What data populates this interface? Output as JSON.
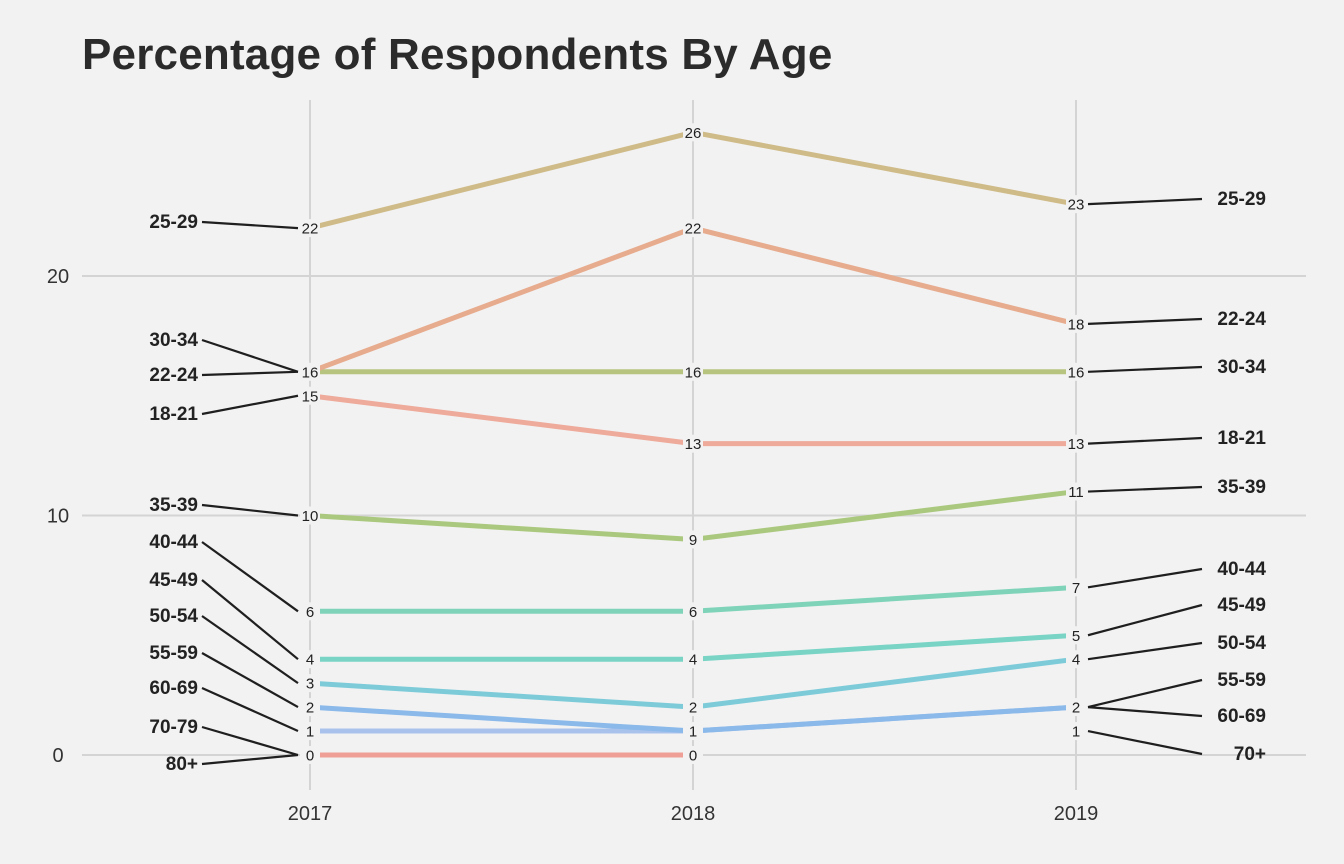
{
  "chart_data": {
    "type": "line",
    "title": "Percentage of Respondents By Age",
    "xlabel": "",
    "ylabel": "",
    "x": [
      "2017",
      "2018",
      "2019"
    ],
    "ylim": [
      -1.5,
      27.5
    ],
    "yticks": [
      0,
      10,
      20
    ],
    "grid": true,
    "legend": "none",
    "series": [
      {
        "name": "25-29",
        "values": [
          22,
          26,
          23
        ],
        "color": "#cfbb88"
      },
      {
        "name": "22-24",
        "values": [
          16,
          22,
          18
        ],
        "color": "#e7ab8e"
      },
      {
        "name": "30-34",
        "values": [
          16,
          16,
          16
        ],
        "color": "#b6c47f"
      },
      {
        "name": "18-21",
        "values": [
          15,
          13,
          13
        ],
        "color": "#eeaa9a"
      },
      {
        "name": "35-39",
        "values": [
          10,
          9,
          11
        ],
        "color": "#abc87f"
      },
      {
        "name": "40-44",
        "values": [
          6,
          6,
          7
        ],
        "color": "#7fd3b9"
      },
      {
        "name": "45-49",
        "values": [
          4,
          4,
          5
        ],
        "color": "#79d4c6"
      },
      {
        "name": "50-54",
        "values": [
          3,
          2,
          4
        ],
        "color": "#7dcbd9"
      },
      {
        "name": "55-59",
        "values": [
          2,
          1,
          2
        ],
        "color": "#8ab9ea"
      },
      {
        "name": "60-69",
        "values": [
          1,
          1,
          2
        ],
        "color": "#a9c2ec"
      },
      {
        "name": "70-79",
        "values": [
          1,
          null,
          null
        ],
        "color": "#b8bfe8"
      },
      {
        "name": "80+",
        "values": [
          0,
          0,
          null
        ],
        "color": "#ef9f95"
      },
      {
        "name": "70+",
        "values": [
          null,
          null,
          1
        ],
        "color": "#c9b9e6"
      }
    ],
    "left_labels": [
      "25-29",
      "30-34",
      "22-24",
      "18-21",
      "35-39",
      "40-44",
      "45-49",
      "50-54",
      "55-59",
      "60-69",
      "70-79",
      "80+"
    ],
    "right_labels": [
      "25-29",
      "22-24",
      "30-34",
      "18-21",
      "35-39",
      "40-44",
      "45-49",
      "50-54",
      "55-59",
      "60-69",
      "70+"
    ]
  }
}
